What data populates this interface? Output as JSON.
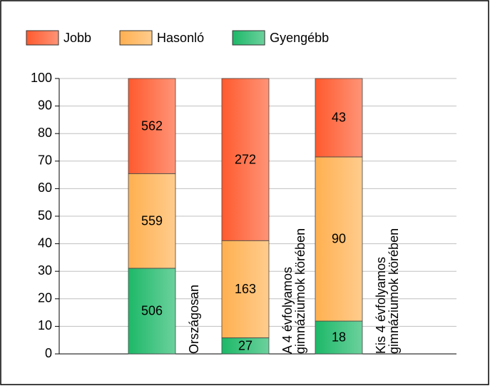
{
  "chart_data": {
    "type": "bar",
    "stacking": "percent",
    "categories": [
      "Országosan",
      "A 4 évfolyamos gimnáziumok körében",
      "Kis 4 évfolyamos gimnáziumok körében"
    ],
    "series": [
      {
        "name": "Gyengébb",
        "color": "#1db868",
        "values": [
          506,
          27,
          18
        ]
      },
      {
        "name": "Hasonló",
        "color": "#ffb050",
        "values": [
          559,
          163,
          90
        ]
      },
      {
        "name": "Jobb",
        "color": "#ff5a2e",
        "values": [
          562,
          272,
          43
        ]
      }
    ],
    "legend_order": [
      2,
      1,
      0
    ],
    "ylim": [
      0,
      100
    ],
    "yticks": [
      0,
      10,
      20,
      30,
      40,
      50,
      60,
      70,
      80,
      90,
      100
    ],
    "grid": true
  }
}
